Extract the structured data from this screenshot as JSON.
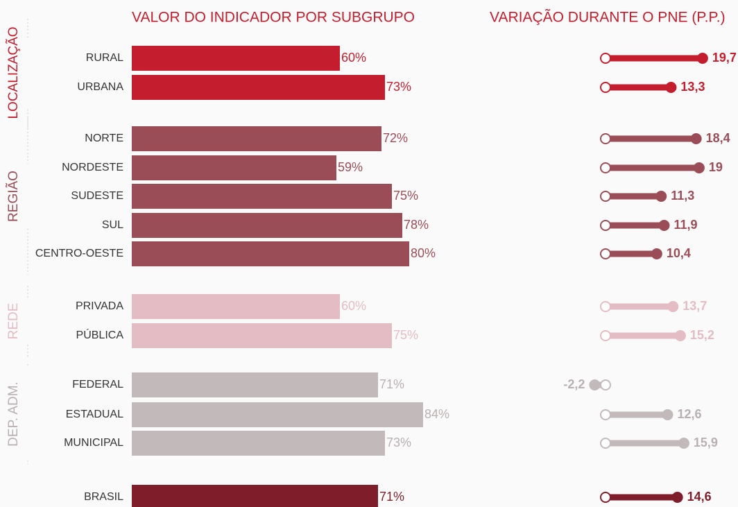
{
  "chart_data": {
    "type": "bar",
    "title": "VALOR DO INDICADOR POR SUBGRUPO",
    "subtitle": "VARIAÇÃO DURANTE O PNE (P.P.)",
    "groups": [
      {
        "name": "LOCALIZAÇÃO",
        "color": "#c41e2e",
        "text_color": "#c41e2e",
        "rows": [
          {
            "category": "RURAL",
            "value": 60,
            "value_label": "60%",
            "change": 19.7,
            "change_label": "19,7"
          },
          {
            "category": "URBANA",
            "value": 73,
            "value_label": "73%",
            "change": 13.3,
            "change_label": "13,3"
          }
        ]
      },
      {
        "name": "REGIÃO",
        "color": "#9b4d57",
        "text_color": "#9b4d57",
        "rows": [
          {
            "category": "NORTE",
            "value": 72,
            "value_label": "72%",
            "change": 18.4,
            "change_label": "18,4"
          },
          {
            "category": "NORDESTE",
            "value": 59,
            "value_label": "59%",
            "change": 19,
            "change_label": "19"
          },
          {
            "category": "SUDESTE",
            "value": 75,
            "value_label": "75%",
            "change": 11.3,
            "change_label": "11,3"
          },
          {
            "category": "SUL",
            "value": 78,
            "value_label": "78%",
            "change": 11.9,
            "change_label": "11,9"
          },
          {
            "category": "CENTRO-OESTE",
            "value": 80,
            "value_label": "80%",
            "change": 10.4,
            "change_label": "10,4"
          }
        ]
      },
      {
        "name": "REDE",
        "color": "#e3bcc4",
        "text_color": "#e3bcc4",
        "rows": [
          {
            "category": "PRIVADA",
            "value": 60,
            "value_label": "60%",
            "change": 13.7,
            "change_label": "13,7"
          },
          {
            "category": "PÚBLICA",
            "value": 75,
            "value_label": "75%",
            "change": 15.2,
            "change_label": "15,2"
          }
        ]
      },
      {
        "name": "DEP. ADM.",
        "color": "#c2b9ba",
        "text_color": "#b9b0b1",
        "rows": [
          {
            "category": "FEDERAL",
            "value": 71,
            "value_label": "71%",
            "change": -2.2,
            "change_label": "-2,2"
          },
          {
            "category": "ESTADUAL",
            "value": 84,
            "value_label": "84%",
            "change": 12.6,
            "change_label": "12,6"
          },
          {
            "category": "MUNICIPAL",
            "value": 73,
            "value_label": "73%",
            "change": 15.9,
            "change_label": "15,9"
          }
        ]
      },
      {
        "color": "#7f1d2a",
        "text_color": "#7f1d2a",
        "rows": [
          {
            "category": "BRASIL",
            "value": 71,
            "value_label": "71%",
            "change": 14.6,
            "change_label": "14,6"
          }
        ]
      }
    ]
  }
}
